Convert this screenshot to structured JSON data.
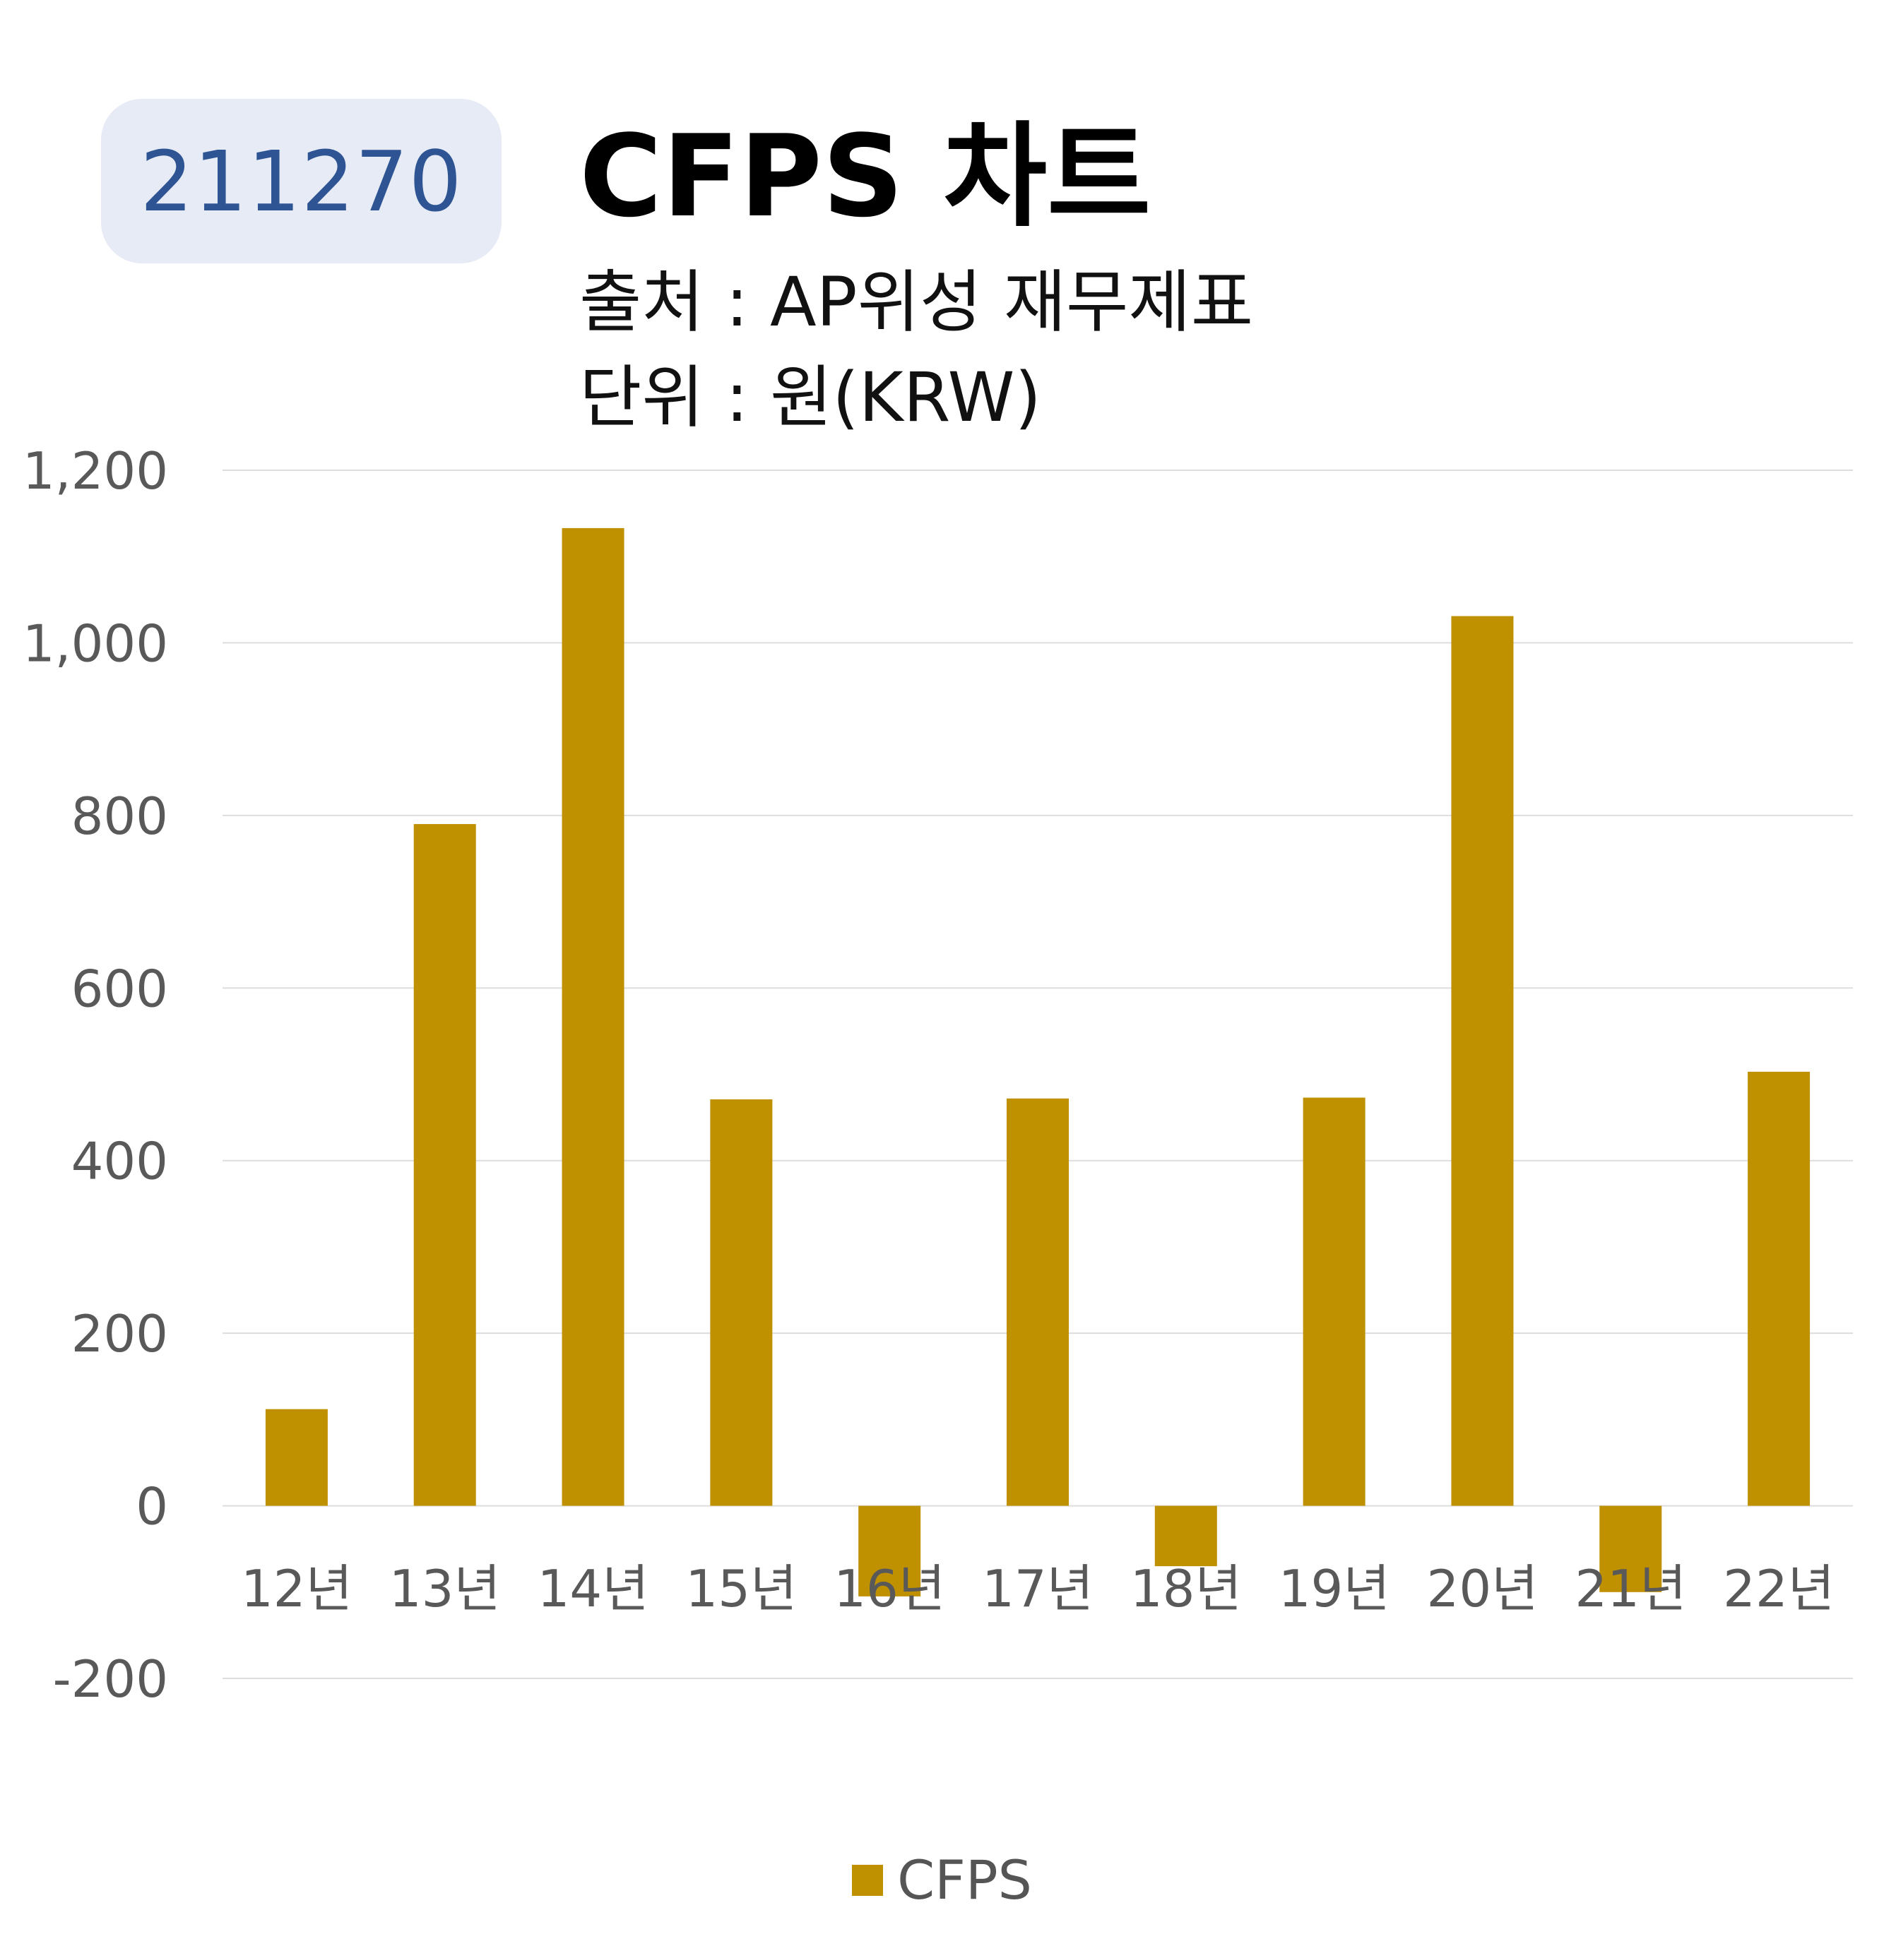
{
  "header": {
    "code": "211270",
    "title": "CFPS 차트",
    "source": "출처 : AP위성 재무제표",
    "unit": "단위 : 원(KRW)"
  },
  "colors": {
    "bar": "#bf9000",
    "grid": "#dddddd",
    "tick_text": "#595959",
    "badge_bg": "#e6ebf5",
    "badge_text": "#2f5494"
  },
  "chart_data": {
    "type": "bar",
    "categories": [
      "12년",
      "13년",
      "14년",
      "15년",
      "16년",
      "17년",
      "18년",
      "19년",
      "20년",
      "21년",
      "22년"
    ],
    "series": [
      {
        "name": "CFPS",
        "values": [
          112,
          790,
          1133,
          471,
          -105,
          472,
          -70,
          473,
          1031,
          -100,
          503
        ]
      }
    ],
    "ylim": [
      -200,
      1200
    ],
    "yticks": [
      "1,200",
      "1,000",
      "800",
      "600",
      "400",
      "200",
      "0",
      "-200"
    ],
    "ytick_values": [
      1200,
      1000,
      800,
      600,
      400,
      200,
      0,
      -200
    ],
    "grid": true,
    "legend": "bottom-center"
  }
}
